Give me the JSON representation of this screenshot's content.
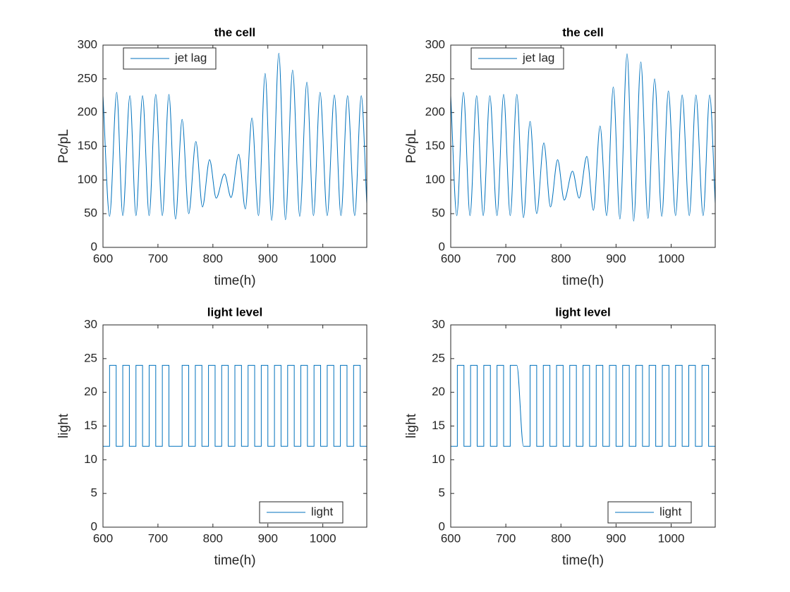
{
  "chart_data": [
    {
      "type": "line",
      "title": "the cell",
      "xlabel": "time(h)",
      "ylabel": "Pc/pL",
      "x": [
        600,
        612,
        625,
        636,
        649,
        660,
        672,
        684,
        696,
        708,
        720,
        732,
        744,
        756,
        769,
        781,
        794,
        806,
        821,
        833,
        847,
        859,
        871,
        883,
        895,
        907,
        920,
        932,
        945,
        958,
        971,
        983,
        995,
        1008,
        1021,
        1033,
        1045,
        1058,
        1070,
        1080
      ],
      "series": [
        {
          "name": "jet lag",
          "color": "#0072bd",
          "values": [
            225,
            46,
            230,
            47,
            225,
            47,
            225,
            47,
            227,
            47,
            227,
            42,
            190,
            50,
            157,
            60,
            130,
            73,
            109,
            74,
            138,
            57,
            192,
            47,
            258,
            40,
            288,
            41,
            263,
            46,
            245,
            47,
            230,
            47,
            226,
            47,
            225,
            47,
            225,
            65
          ]
        }
      ],
      "xlim": [
        600,
        1080
      ],
      "ylim": [
        0,
        300
      ],
      "xticks": [
        600,
        700,
        800,
        900,
        1000
      ],
      "yticks": [
        0,
        50,
        100,
        150,
        200,
        250,
        300
      ],
      "legend": "upper left"
    },
    {
      "type": "line",
      "title": "the cell",
      "xlabel": "time(h)",
      "ylabel": "Pc/pL",
      "x": [
        600,
        611,
        623,
        635,
        647,
        659,
        671,
        684,
        696,
        708,
        720,
        732,
        744,
        756,
        769,
        781,
        794,
        806,
        821,
        833,
        847,
        859,
        871,
        883,
        895,
        907,
        920,
        932,
        945,
        958,
        970,
        983,
        995,
        1008,
        1020,
        1033,
        1045,
        1058,
        1070,
        1080
      ],
      "series": [
        {
          "name": "jet lag",
          "color": "#0072bd",
          "values": [
            225,
            47,
            230,
            47,
            225,
            47,
            225,
            47,
            227,
            47,
            227,
            44,
            187,
            50,
            155,
            60,
            130,
            70,
            113,
            73,
            135,
            55,
            180,
            47,
            238,
            42,
            287,
            39,
            275,
            43,
            250,
            46,
            232,
            47,
            226,
            47,
            226,
            47,
            226,
            65
          ]
        }
      ],
      "xlim": [
        600,
        1080
      ],
      "ylim": [
        0,
        300
      ],
      "xticks": [
        600,
        700,
        800,
        900,
        1000
      ],
      "yticks": [
        0,
        50,
        100,
        150,
        200,
        250,
        300
      ],
      "legend": "upper left"
    },
    {
      "type": "line",
      "title": "light level",
      "xlabel": "time(h)",
      "ylabel": "light",
      "x": [
        600,
        612,
        612,
        624,
        624,
        636,
        636,
        648,
        648,
        660,
        660,
        672,
        672,
        684,
        684,
        696,
        696,
        708,
        708,
        720,
        720,
        744,
        744,
        756,
        756,
        768,
        768,
        780,
        780,
        792,
        792,
        804,
        804,
        816,
        816,
        828,
        828,
        840,
        840,
        852,
        852,
        864,
        864,
        876,
        876,
        888,
        888,
        900,
        900,
        912,
        912,
        924,
        924,
        936,
        936,
        948,
        948,
        960,
        960,
        972,
        972,
        984,
        984,
        996,
        996,
        1008,
        1008,
        1020,
        1020,
        1032,
        1032,
        1044,
        1044,
        1056,
        1056,
        1068,
        1068,
        1080,
        1080
      ],
      "series": [
        {
          "name": "light",
          "color": "#0072bd",
          "values": [
            12,
            12,
            24,
            24,
            12,
            12,
            24,
            24,
            12,
            12,
            24,
            24,
            12,
            12,
            24,
            24,
            12,
            12,
            24,
            24,
            12,
            12,
            24,
            24,
            12,
            12,
            24,
            24,
            12,
            12,
            24,
            24,
            12,
            12,
            24,
            24,
            12,
            12,
            24,
            24,
            12,
            12,
            24,
            24,
            12,
            12,
            24,
            24,
            12,
            12,
            24,
            24,
            12,
            12,
            24,
            24,
            12,
            12,
            24,
            24,
            12,
            12,
            24,
            24,
            12,
            12,
            24,
            24,
            12,
            12,
            24,
            24,
            12,
            12,
            24,
            24,
            12,
            12,
            24
          ]
        }
      ],
      "xlim": [
        600,
        1080
      ],
      "ylim": [
        0,
        30
      ],
      "xticks": [
        600,
        700,
        800,
        900,
        1000
      ],
      "yticks": [
        0,
        5,
        10,
        15,
        20,
        25,
        30
      ],
      "legend": "lower right"
    },
    {
      "type": "line",
      "title": "light level",
      "xlabel": "time(h)",
      "ylabel": "light",
      "x": [
        600,
        612,
        612,
        624,
        624,
        636,
        636,
        648,
        648,
        660,
        660,
        672,
        672,
        684,
        684,
        696,
        696,
        708,
        708,
        720,
        732,
        744,
        744,
        756,
        756,
        768,
        768,
        780,
        780,
        792,
        792,
        804,
        804,
        816,
        816,
        828,
        828,
        840,
        840,
        852,
        852,
        864,
        864,
        876,
        876,
        888,
        888,
        900,
        900,
        912,
        912,
        924,
        924,
        936,
        936,
        948,
        948,
        960,
        960,
        972,
        972,
        984,
        984,
        996,
        996,
        1008,
        1008,
        1020,
        1020,
        1032,
        1032,
        1044,
        1044,
        1056,
        1056,
        1068,
        1068,
        1080,
        1080
      ],
      "series": [
        {
          "name": "light",
          "color": "#0072bd",
          "values": [
            12,
            12,
            24,
            24,
            12,
            12,
            24,
            24,
            12,
            12,
            24,
            24,
            12,
            12,
            24,
            24,
            12,
            12,
            24,
            24,
            12,
            12,
            24,
            24,
            12,
            12,
            24,
            24,
            12,
            12,
            24,
            24,
            12,
            12,
            24,
            24,
            12,
            12,
            24,
            24,
            12,
            12,
            24,
            24,
            12,
            12,
            24,
            24,
            12,
            12,
            24,
            24,
            12,
            12,
            24,
            24,
            12,
            12,
            24,
            24,
            12,
            12,
            24,
            24,
            12,
            12,
            24,
            24,
            12,
            12,
            24,
            24,
            12,
            12,
            24,
            24,
            12,
            12,
            24
          ]
        }
      ],
      "xlim": [
        600,
        1080
      ],
      "ylim": [
        0,
        30
      ],
      "xticks": [
        600,
        700,
        800,
        900,
        1000
      ],
      "yticks": [
        0,
        5,
        10,
        15,
        20,
        25,
        30
      ],
      "legend": "lower right"
    }
  ]
}
